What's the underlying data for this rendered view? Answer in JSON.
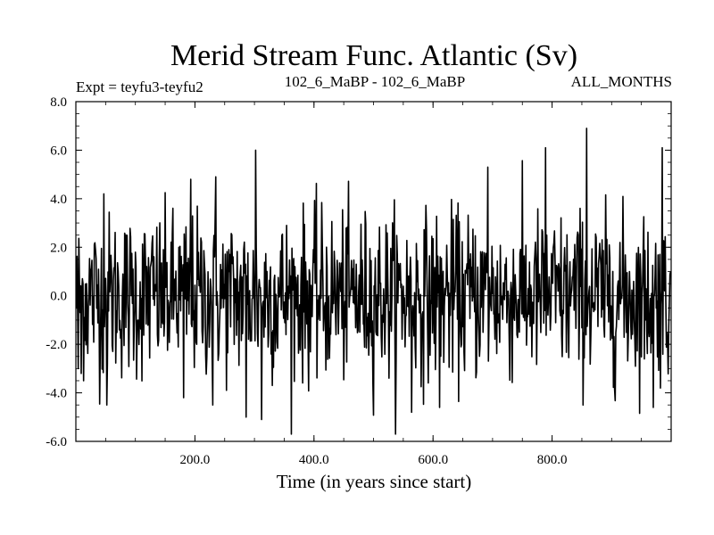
{
  "chart_data": {
    "type": "line",
    "title": "Merid Stream Func. Atlantic (Sv)",
    "subtitle_left": "Expt = teyfu3-teyfu2",
    "subtitle_center": "102_6_MaBP - 102_6_MaBP",
    "subtitle_right": "ALL_MONTHS",
    "xlabel": "Time (in years since start)",
    "ylabel": "",
    "xlim": [
      0,
      1000
    ],
    "ylim": [
      -6.0,
      8.0
    ],
    "x_ticks": [
      200,
      400,
      600,
      800
    ],
    "x_tick_labels": [
      "200.0",
      "400.0",
      "600.0",
      "800.0"
    ],
    "y_ticks": [
      -6,
      -4,
      -2,
      0,
      2,
      4,
      6,
      8
    ],
    "y_tick_labels": [
      "-6.0",
      "-4.0",
      "-2.0",
      "0.0",
      "2.0",
      "4.0",
      "6.0",
      "8.0"
    ],
    "zero_line": true,
    "grid": false,
    "series": [
      {
        "name": "teyfu3-teyfu2",
        "x_start": 1,
        "x_step": 1,
        "n_points": 999,
        "approx_mean": 0.0,
        "approx_std": 1.7,
        "highlights": [
          {
            "x": 4,
            "y": -3.0
          },
          {
            "x": 9,
            "y": -3.2
          },
          {
            "x": 47,
            "y": 4.2
          },
          {
            "x": 52,
            "y": -4.5
          },
          {
            "x": 181,
            "y": -4.2
          },
          {
            "x": 193,
            "y": 4.8
          },
          {
            "x": 230,
            "y": -4.5
          },
          {
            "x": 235,
            "y": 4.9
          },
          {
            "x": 286,
            "y": -5.0
          },
          {
            "x": 302,
            "y": 6.0
          },
          {
            "x": 312,
            "y": -5.1
          },
          {
            "x": 564,
            "y": -4.8
          },
          {
            "x": 611,
            "y": -4.6
          },
          {
            "x": 692,
            "y": 5.3
          },
          {
            "x": 789,
            "y": 6.1
          },
          {
            "x": 858,
            "y": 6.9
          },
          {
            "x": 970,
            "y": -4.6
          },
          {
            "x": 985,
            "y": 6.1
          }
        ]
      }
    ]
  }
}
